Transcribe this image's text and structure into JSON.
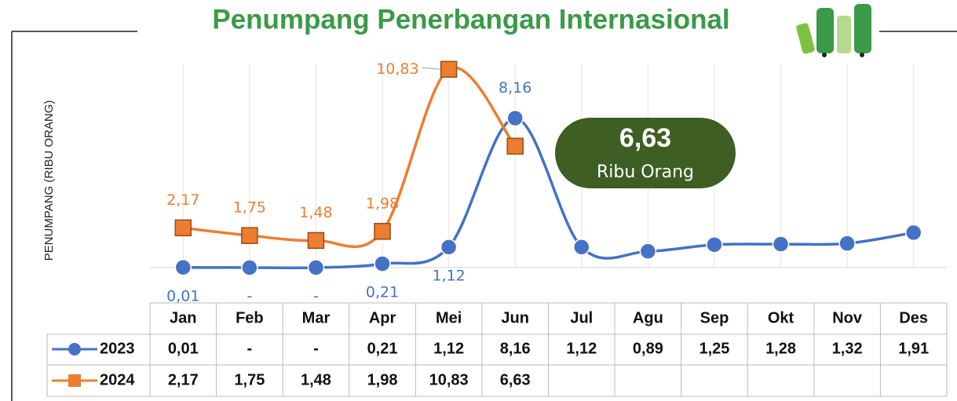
{
  "chart_data": {
    "type": "line",
    "title": "Penumpang Penerbangan Internasional",
    "y_label": "PENUMPANG (RIBU ORANG)",
    "categories": [
      "Jan",
      "Feb",
      "Mar",
      "Apr",
      "Mei",
      "Jun",
      "Jul",
      "Agu",
      "Sep",
      "Okt",
      "Nov",
      "Des"
    ],
    "series": [
      {
        "name": "2023",
        "color": "#4472c4",
        "marker": "circle",
        "values": [
          0.01,
          0,
          0,
          0.21,
          1.12,
          8.16,
          1.12,
          0.89,
          1.25,
          1.28,
          1.32,
          1.91
        ],
        "value_labels": [
          "0,01",
          "-",
          "-",
          "0,21",
          "1,12",
          "8,16",
          "1,12",
          "0,89",
          "1,25",
          "1,28",
          "1,32",
          "1,91"
        ]
      },
      {
        "name": "2024",
        "color": "#ed7d31",
        "marker": "square",
        "values": [
          2.17,
          1.75,
          1.48,
          1.98,
          10.83,
          6.63,
          null,
          null,
          null,
          null,
          null,
          null
        ],
        "value_labels": [
          "2,17",
          "1,75",
          "1,48",
          "1,98",
          "10,83",
          "6,63",
          null,
          null,
          null,
          null,
          null,
          null
        ]
      }
    ],
    "ylim": [
      0,
      12
    ],
    "grid": "vertical",
    "annotation": {
      "value": "6,63",
      "unit": "Ribu Orang"
    }
  }
}
